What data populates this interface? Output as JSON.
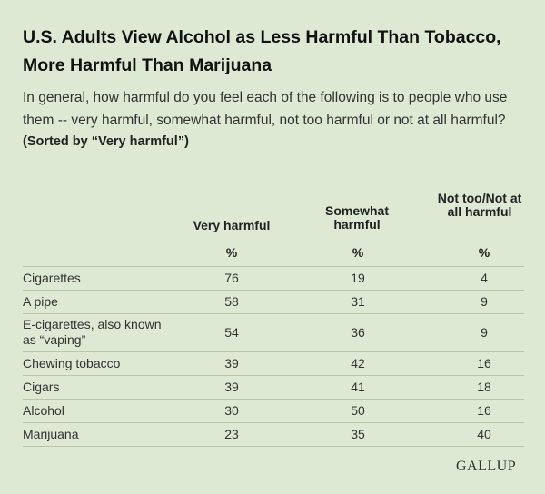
{
  "title": "U.S. Adults View Alcohol as Less Harmful Than Tobacco, More Harmful Than Marijuana",
  "subtitle": "In general, how harmful do you feel each of the following is to people who use them -- very harmful, somewhat harmful, not too harmful or not at all harmful?",
  "sort_note": "(Sorted by “Very harmful”)",
  "logo": "GALLUP",
  "chart_data": {
    "type": "table",
    "columns": [
      "Very harmful",
      "Somewhat harmful",
      "Not too/Not at all harmful"
    ],
    "unit": "%",
    "rows": [
      {
        "label": "Cigarettes",
        "values": [
          76,
          19,
          4
        ]
      },
      {
        "label": "A pipe",
        "values": [
          58,
          31,
          9
        ]
      },
      {
        "label": "E-cigarettes, also known as “vaping”",
        "values": [
          54,
          36,
          9
        ]
      },
      {
        "label": "Chewing tobacco",
        "values": [
          39,
          42,
          16
        ]
      },
      {
        "label": "Cigars",
        "values": [
          39,
          41,
          18
        ]
      },
      {
        "label": "Alcohol",
        "values": [
          30,
          50,
          16
        ]
      },
      {
        "label": "Marijuana",
        "values": [
          23,
          35,
          40
        ]
      }
    ]
  }
}
